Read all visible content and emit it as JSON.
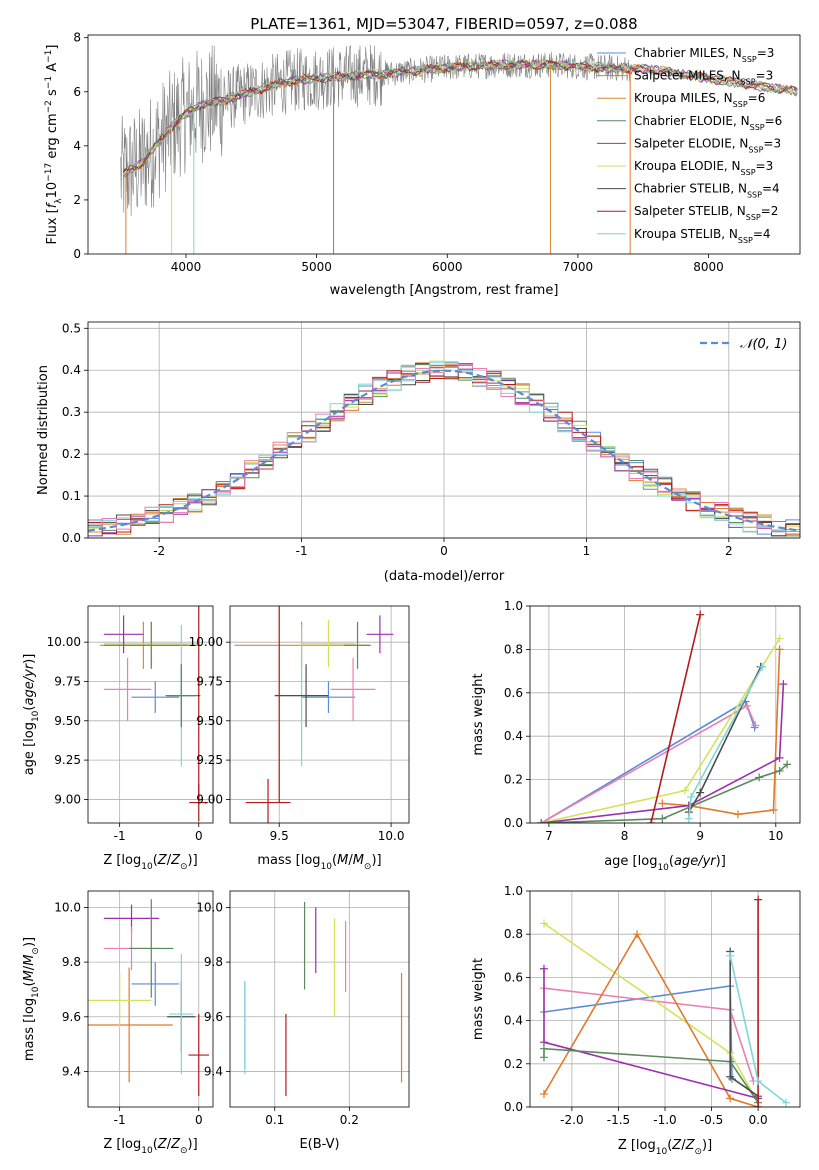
{
  "title": "PLATE=1361, MJD=53047, FIBERID=0597, z=0.088",
  "colors": {
    "c1": "#5b8bd6",
    "c2": "#e07a2a",
    "c3": "#d98b33",
    "c4": "#5a8a5e",
    "c5": "#9a2fb0",
    "c6": "#d4e25a",
    "c7": "#4d4d4d",
    "c8": "#b31b1b",
    "c9": "#7fd6d6",
    "grey": "#808080",
    "pink": "#e87fb5",
    "dash": "#5b8bd6"
  },
  "chart_data": [
    {
      "id": "spectrum",
      "type": "line",
      "xlabel": "wavelength [Angstrom, rest frame]",
      "ylabel": "Flux [f_λ10^-17 erg cm^-2 s^-1 A^-1]",
      "xlim": [
        3250,
        8700
      ],
      "ylim": [
        0,
        8.1
      ],
      "xticks": [
        4000,
        5000,
        6000,
        7000,
        8000
      ],
      "yticks": [
        0,
        2,
        4,
        6,
        8
      ],
      "legend_position": "right",
      "legend": [
        {
          "label": "Chabrier MILES, N",
          "sub": "SSP",
          "n": "=3",
          "color": "#5b8bd6"
        },
        {
          "label": "Salpeter MILES, N",
          "sub": "SSP",
          "n": "=3",
          "color": "#e07a2a"
        },
        {
          "label": "Kroupa MILES, N",
          "sub": "SSP",
          "n": "=6",
          "color": "#d98b33"
        },
        {
          "label": "Chabrier ELODIE, N",
          "sub": "SSP",
          "n": "=6",
          "color": "#5a8a5e"
        },
        {
          "label": "Salpeter ELODIE, N",
          "sub": "SSP",
          "n": "=3",
          "color": "#9a2fb0"
        },
        {
          "label": "Kroupa ELODIE, N",
          "sub": "SSP",
          "n": "=3",
          "color": "#d4e25a"
        },
        {
          "label": "Chabrier STELIB, N",
          "sub": "SSP",
          "n": "=4",
          "color": "#4d4d4d"
        },
        {
          "label": "Salpeter STELIB, N",
          "sub": "SSP",
          "n": "=2",
          "color": "#b31b1b"
        },
        {
          "label": "Kroupa STELIB, N",
          "sub": "SSP",
          "n": "=4",
          "color": "#7fd6d6"
        }
      ],
      "continuum": {
        "x": [
          3500,
          3650,
          3800,
          3950,
          4100,
          4300,
          4500,
          4800,
          5000,
          5300,
          5600,
          6000,
          6400,
          6800,
          7200,
          7600,
          8000,
          8400,
          8700
        ],
        "y": [
          2.9,
          3.3,
          4.2,
          5.0,
          5.5,
          5.7,
          6.0,
          6.4,
          6.5,
          6.6,
          6.7,
          6.9,
          7.0,
          7.0,
          6.9,
          6.8,
          6.5,
          6.2,
          6.0
        ]
      },
      "noise_to_x": 7400
    },
    {
      "id": "residuals",
      "type": "step",
      "xlabel": "(data-model)/error",
      "ylabel": "Normed distribution",
      "xlim": [
        -2.5,
        2.5
      ],
      "ylim": [
        0,
        0.515
      ],
      "xticks": [
        -2,
        -1,
        0,
        1,
        2
      ],
      "yticks": [
        0.0,
        0.1,
        0.2,
        0.3,
        0.4,
        0.5
      ],
      "legend_label": "𝒩(0, 1)",
      "legend_position": "top-right",
      "bin_width": 0.1
    },
    {
      "id": "age-vs-Z",
      "type": "errorbar",
      "xlabel": "Z [log10(Z/Z⊙)]",
      "ylabel": "age  [log10(age/yr)]",
      "xlim": [
        -1.4,
        0.18
      ],
      "ylim": [
        8.85,
        10.23
      ],
      "xticks": [
        -1,
        0
      ],
      "yticks": [
        9.0,
        9.25,
        9.5,
        9.75,
        10.0
      ],
      "points": [
        {
          "x": -0.55,
          "y": 9.65,
          "xerr": 0.3,
          "yerr": 0.1,
          "color": "#5b8bd6"
        },
        {
          "x": -0.7,
          "y": 9.98,
          "xerr": 0.55,
          "yerr": 0.15,
          "color": "#d98b33"
        },
        {
          "x": -0.6,
          "y": 9.99,
          "xerr": 0.6,
          "yerr": 0.14,
          "color": "#d4e25a"
        },
        {
          "x": -0.95,
          "y": 10.05,
          "xerr": 0.25,
          "yerr": 0.12,
          "color": "#9a2fb0"
        },
        {
          "x": -0.9,
          "y": 9.7,
          "xerr": 0.3,
          "yerr": 0.2,
          "color": "#e87fb5"
        },
        {
          "x": -0.6,
          "y": 9.98,
          "xerr": 0.6,
          "yerr": 0.15,
          "color": "#5a8a5e"
        },
        {
          "x": -0.22,
          "y": 9.66,
          "xerr": 0.18,
          "yerr": 0.2,
          "color": "#4d4d4d"
        },
        {
          "x": -0.22,
          "y": 9.66,
          "xerr": 0.18,
          "yerr": 0.45,
          "color": "#7fd6d6"
        },
        {
          "x": 0.0,
          "y": 8.98,
          "xerr": 0.12,
          "yerr": 0.12,
          "color": "#b31b1b"
        },
        {
          "x": -0.22,
          "y": 9.66,
          "xerr": 0.2,
          "yerr": 0.2,
          "color": "#5a8a5e"
        },
        {
          "x": 0.0,
          "y": 9.66,
          "xerr": 0.02,
          "yerr": 0.68,
          "color": "#b31b1b"
        }
      ]
    },
    {
      "id": "age-vs-mass",
      "type": "errorbar",
      "xlabel": "mass [log10(M/M⊙)]",
      "ylabel": "",
      "xlim": [
        9.28,
        10.08
      ],
      "ylim": [
        8.85,
        10.23
      ],
      "xticks": [
        9.5,
        10.0
      ],
      "yticks": [
        9.0,
        9.25,
        9.5,
        9.75,
        10.0
      ],
      "points": [
        {
          "x": 9.72,
          "y": 9.65,
          "xerr": 0.12,
          "yerr": 0.1,
          "color": "#5b8bd6"
        },
        {
          "x": 9.6,
          "y": 9.98,
          "xerr": 0.3,
          "yerr": 0.15,
          "color": "#d98b33"
        },
        {
          "x": 9.72,
          "y": 9.99,
          "xerr": 0.12,
          "yerr": 0.15,
          "color": "#d4e25a"
        },
        {
          "x": 9.95,
          "y": 10.05,
          "xerr": 0.06,
          "yerr": 0.12,
          "color": "#9a2fb0"
        },
        {
          "x": 9.83,
          "y": 9.7,
          "xerr": 0.1,
          "yerr": 0.2,
          "color": "#e87fb5"
        },
        {
          "x": 9.85,
          "y": 9.98,
          "xerr": 0.06,
          "yerr": 0.15,
          "color": "#5a8a5e"
        },
        {
          "x": 9.6,
          "y": 9.66,
          "xerr": 0.12,
          "yerr": 0.45,
          "color": "#7fd6d6"
        },
        {
          "x": 9.62,
          "y": 9.66,
          "xerr": 0.1,
          "yerr": 0.2,
          "color": "#4d4d4d"
        },
        {
          "x": 9.45,
          "y": 8.98,
          "xerr": 0.1,
          "yerr": 0.15,
          "color": "#b31b1b"
        },
        {
          "x": 9.5,
          "y": 9.66,
          "xerr": 0.02,
          "yerr": 0.68,
          "color": "#b31b1b"
        }
      ]
    },
    {
      "id": "weight-vs-age",
      "type": "line",
      "xlabel": "age  [log10(age/yr)]",
      "ylabel": "mass weight",
      "xlim": [
        6.75,
        10.32
      ],
      "ylim": [
        0,
        1.0
      ],
      "xticks": [
        7,
        8,
        9,
        10
      ],
      "yticks": [
        0.0,
        0.2,
        0.4,
        0.6,
        0.8,
        1.0
      ],
      "series": [
        {
          "color": "#5b8bd6",
          "x": [
            6.9,
            9.6,
            9.72
          ],
          "y": [
            0.0,
            0.56,
            0.44
          ]
        },
        {
          "color": "#e87fb5",
          "x": [
            6.9,
            9.62,
            9.73
          ],
          "y": [
            0.0,
            0.54,
            0.45
          ]
        },
        {
          "color": "#d4e25a",
          "x": [
            6.9,
            8.8,
            10.05
          ],
          "y": [
            0.0,
            0.15,
            0.85
          ]
        },
        {
          "color": "#e07a2a",
          "x": [
            8.5,
            8.85,
            9.5,
            9.97,
            10.05
          ],
          "y": [
            0.09,
            0.08,
            0.04,
            0.06,
            0.8
          ]
        },
        {
          "color": "#9a2fb0",
          "x": [
            6.9,
            8.85,
            10.05,
            10.1
          ],
          "y": [
            0.0,
            0.08,
            0.3,
            0.64
          ]
        },
        {
          "color": "#5a8a5e",
          "x": [
            6.9,
            8.5,
            9.78,
            10.05,
            10.15
          ],
          "y": [
            0.0,
            0.02,
            0.21,
            0.24,
            0.27
          ]
        },
        {
          "color": "#4d4d4d",
          "x": [
            8.85,
            9.0,
            9.8
          ],
          "y": [
            0.05,
            0.14,
            0.72
          ]
        },
        {
          "color": "#b31b1b",
          "x": [
            8.35,
            9.0
          ],
          "y": [
            0.0,
            0.96
          ]
        },
        {
          "color": "#7fd6d6",
          "x": [
            8.85,
            8.88,
            9.82
          ],
          "y": [
            0.02,
            0.12,
            0.72
          ]
        }
      ]
    },
    {
      "id": "mass-vs-Z",
      "type": "errorbar",
      "xlabel": "Z [log10(Z/Z⊙)]",
      "ylabel": "mass [log10(M/M⊙)]",
      "xlim": [
        -1.4,
        0.18
      ],
      "ylim": [
        9.27,
        10.06
      ],
      "xticks": [
        -1,
        0
      ],
      "yticks": [
        9.4,
        9.6,
        9.8,
        10.0
      ],
      "points": [
        {
          "x": -0.55,
          "y": 9.72,
          "xerr": 0.3,
          "yerr": 0.08,
          "color": "#5b8bd6"
        },
        {
          "x": -0.88,
          "y": 9.57,
          "xerr": 0.55,
          "yerr": 0.21,
          "color": "#e07a2a"
        },
        {
          "x": -1.0,
          "y": 9.66,
          "xerr": 0.4,
          "yerr": 0.1,
          "color": "#d4e25a"
        },
        {
          "x": -0.85,
          "y": 9.96,
          "xerr": 0.35,
          "yerr": 0.05,
          "color": "#9a2fb0"
        },
        {
          "x": -0.85,
          "y": 9.85,
          "xerr": 0.35,
          "yerr": 0.08,
          "color": "#e87fb5"
        },
        {
          "x": -0.6,
          "y": 9.85,
          "xerr": 0.28,
          "yerr": 0.18,
          "color": "#5a8a5e"
        },
        {
          "x": -0.22,
          "y": 9.6,
          "xerr": 0.18,
          "yerr": 0.13,
          "color": "#4d4d4d"
        },
        {
          "x": -0.22,
          "y": 9.61,
          "xerr": 0.15,
          "yerr": 0.22,
          "color": "#7fd6d6"
        },
        {
          "x": 0.0,
          "y": 9.46,
          "xerr": 0.13,
          "yerr": 0.15,
          "color": "#b31b1b"
        }
      ]
    },
    {
      "id": "mass-vs-ebv",
      "type": "errorbar",
      "xlabel": "E(B-V)",
      "ylabel": "",
      "xlim": [
        0.04,
        0.28
      ],
      "ylim": [
        9.27,
        10.06
      ],
      "xticks": [
        0.1,
        0.2
      ],
      "yticks": [
        9.4,
        9.6,
        9.8,
        10.0
      ],
      "points": [
        {
          "x": 0.06,
          "y": 9.57,
          "xerr": 0.0,
          "yerr": 0.16,
          "color": "#5b8bd6"
        },
        {
          "x": 0.06,
          "y": 9.56,
          "xerr": 0.0,
          "yerr": 0.17,
          "color": "#7fd6d6"
        },
        {
          "x": 0.14,
          "y": 9.86,
          "xerr": 0.0,
          "yerr": 0.16,
          "color": "#5a8a5e"
        },
        {
          "x": 0.155,
          "y": 9.88,
          "xerr": 0.0,
          "yerr": 0.12,
          "color": "#9a2fb0"
        },
        {
          "x": 0.18,
          "y": 9.78,
          "xerr": 0.0,
          "yerr": 0.18,
          "color": "#d4e25a"
        },
        {
          "x": 0.195,
          "y": 9.82,
          "xerr": 0.0,
          "yerr": 0.13,
          "color": "#e87fb5"
        },
        {
          "x": 0.115,
          "y": 9.46,
          "xerr": 0.0,
          "yerr": 0.15,
          "color": "#b31b1b"
        },
        {
          "x": 0.27,
          "y": 9.56,
          "xerr": 0.0,
          "yerr": 0.2,
          "color": "#e07a2a"
        }
      ]
    },
    {
      "id": "weight-vs-Z",
      "type": "line",
      "xlabel": "Z [log10(Z/Z⊙)]",
      "ylabel": "mass weight",
      "xlim": [
        -2.45,
        0.45
      ],
      "ylim": [
        0,
        1.0
      ],
      "xticks": [
        -2.0,
        -1.5,
        -1.0,
        -0.5,
        0.0
      ],
      "yticks": [
        0.0,
        0.2,
        0.4,
        0.6,
        0.8,
        1.0
      ],
      "series": [
        {
          "color": "#5b8bd6",
          "x": [
            -2.3,
            -0.3,
            -0.28
          ],
          "y": [
            0.44,
            0.56,
            0.13
          ]
        },
        {
          "color": "#e87fb5",
          "x": [
            -2.3,
            -0.3,
            -0.05
          ],
          "y": [
            0.55,
            0.45,
            0.12
          ]
        },
        {
          "color": "#d4e25a",
          "x": [
            -2.3,
            -0.3,
            0.0
          ],
          "y": [
            0.85,
            0.25,
            0.02
          ]
        },
        {
          "color": "#e07a2a",
          "x": [
            -2.3,
            -1.3,
            -0.3,
            0.0
          ],
          "y": [
            0.06,
            0.8,
            0.04,
            0.0
          ]
        },
        {
          "color": "#9a2fb0",
          "x": [
            -2.3,
            -2.3,
            0.0
          ],
          "y": [
            0.64,
            0.3,
            0.04
          ]
        },
        {
          "color": "#5a8a5e",
          "x": [
            -2.3,
            -2.3,
            -0.3,
            0.0
          ],
          "y": [
            0.23,
            0.27,
            0.21,
            0.02
          ]
        },
        {
          "color": "#4d4d4d",
          "x": [
            -0.3,
            -0.3,
            0.0
          ],
          "y": [
            0.72,
            0.14,
            0.05
          ]
        },
        {
          "color": "#b31b1b",
          "x": [
            0.0,
            0.0
          ],
          "y": [
            0.96,
            0.0
          ]
        },
        {
          "color": "#7fd6d6",
          "x": [
            -0.3,
            0.0,
            0.3
          ],
          "y": [
            0.7,
            0.12,
            0.02
          ]
        }
      ]
    }
  ]
}
